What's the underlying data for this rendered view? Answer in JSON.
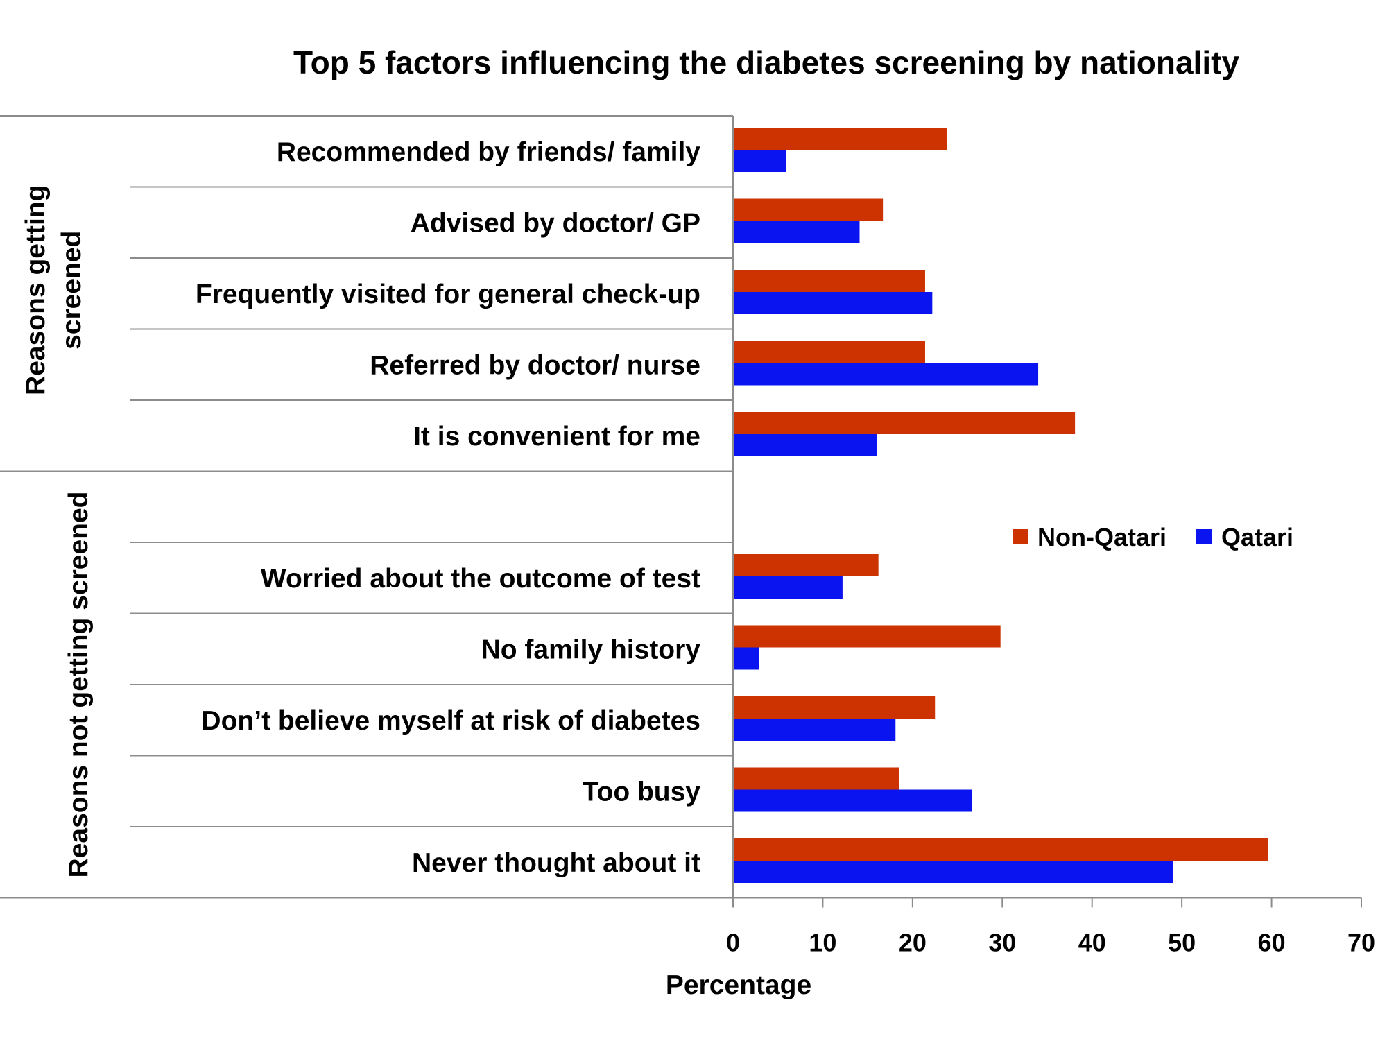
{
  "chart_data": {
    "type": "bar",
    "orientation": "horizontal",
    "title": "Top 5 factors influencing the diabetes screening by nationality",
    "xlabel": "Percentage",
    "ylabel": "",
    "xlim": [
      0,
      70
    ],
    "x_ticks": [
      "0",
      "10",
      "20",
      "30",
      "40",
      "50",
      "60",
      "70"
    ],
    "grid": false,
    "legend_position": "right",
    "groups": [
      {
        "label": "Reasons getting screened",
        "categories": [
          "Recommended by friends/ family",
          "Advised by doctor/ GP",
          "Frequently visited for general check-up",
          "Referred by doctor/ nurse",
          "It is convenient for me"
        ]
      },
      {
        "label": "Reasons not getting screened",
        "categories": [
          "",
          "Worried about the outcome of test",
          "No family history",
          "Don’t believe myself at risk of diabetes",
          "Too busy",
          "Never thought about it"
        ]
      }
    ],
    "categories": [
      "Recommended by friends/ family",
      "Advised by doctor/ GP",
      "Frequently visited for general check-up",
      "Referred by doctor/ nurse",
      "It is convenient for me",
      "",
      "Worried about the outcome of test",
      "No family history",
      "Don’t believe myself at risk of diabetes",
      "Too busy",
      "Never thought about it"
    ],
    "series": [
      {
        "name": "Non-Qatari",
        "color": "#cc3300",
        "values": [
          23.8,
          16.7,
          21.4,
          21.4,
          38.1,
          null,
          16.2,
          29.8,
          22.5,
          18.5,
          59.6
        ]
      },
      {
        "name": "Qatari",
        "color": "#0a14f0",
        "values": [
          5.9,
          14.1,
          22.2,
          34.0,
          16.0,
          null,
          12.2,
          2.9,
          18.1,
          26.6,
          49.0
        ]
      }
    ]
  }
}
